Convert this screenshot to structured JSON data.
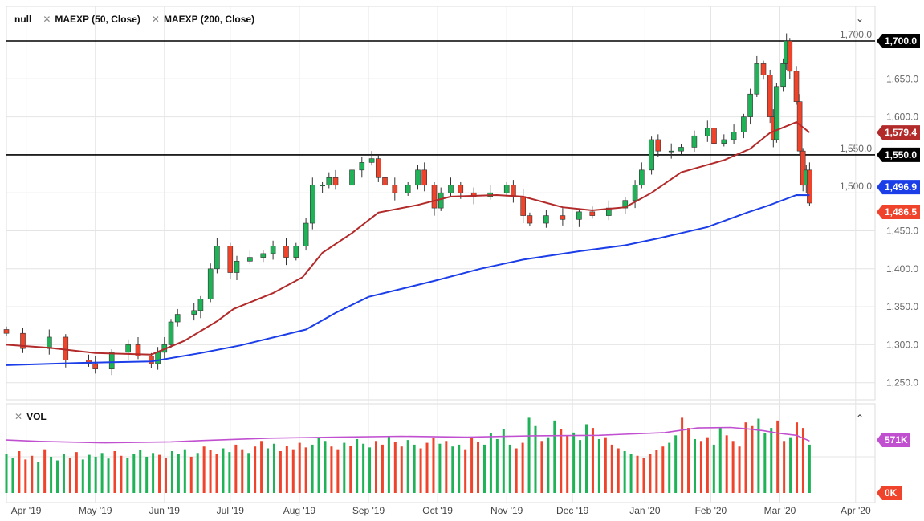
{
  "header": {
    "symbol": "null",
    "indicators": [
      "MAEXP (50, Close)",
      "MAEXP (200, Close)"
    ],
    "collapse_icon": "chevron-down-icon"
  },
  "volume_pane": {
    "title": "VOL",
    "collapse_icon": "chevron-up-icon",
    "last_label": "571K",
    "zero_label": "0K"
  },
  "colors": {
    "up": "#1fb257",
    "down": "#f0432b",
    "ma50": "#b22a2a",
    "ma200": "#1b3ee8",
    "volma": "#c050d0",
    "hline": "#000000"
  },
  "chart_data": {
    "type": "candlestick",
    "ylim": [
      1230,
      1710
    ],
    "yticks": [
      "1,250.0",
      "1,300.0",
      "1,350.0",
      "1,400.0",
      "1,450.0",
      "1,500.0",
      "1,550.0",
      "1,600.0",
      "1,650.0",
      "1,700.0"
    ],
    "ytick_values": [
      1250,
      1300,
      1350,
      1400,
      1450,
      1500,
      1550,
      1600,
      1650,
      1700
    ],
    "xticks": [
      {
        "d": 6,
        "label": "Apr '19"
      },
      {
        "d": 27,
        "label": "May '19"
      },
      {
        "d": 48,
        "label": "Jun '19"
      },
      {
        "d": 68,
        "label": "Jul '19"
      },
      {
        "d": 89,
        "label": "Aug '19"
      },
      {
        "d": 110,
        "label": "Sep '19"
      },
      {
        "d": 131,
        "label": "Oct '19"
      },
      {
        "d": 152,
        "label": "Nov '19"
      },
      {
        "d": 172,
        "label": "Dec '19"
      },
      {
        "d": 194,
        "label": "Jan '20"
      },
      {
        "d": 214,
        "label": "Feb '20"
      },
      {
        "d": 235,
        "label": "Mar '20"
      },
      {
        "d": 258,
        "label": "Apr '20"
      }
    ],
    "xlim": [
      -2,
      265
    ],
    "horizontal_lines": [
      {
        "value": 1700,
        "label": "1,700.0"
      },
      {
        "value": 1550,
        "label": "1,550.0"
      }
    ],
    "last_labels": {
      "ma50": "1,579.4",
      "ma200": "1,496.9",
      "price": "1,486.5"
    },
    "closes": [
      [
        0,
        1315
      ],
      [
        5,
        1295
      ],
      [
        13,
        1310
      ],
      [
        18,
        1280
      ],
      [
        25,
        1275
      ],
      [
        27,
        1268
      ],
      [
        32,
        1290
      ],
      [
        37,
        1300
      ],
      [
        40,
        1285
      ],
      [
        44,
        1275
      ],
      [
        46,
        1290
      ],
      [
        48,
        1300
      ],
      [
        50,
        1330
      ],
      [
        52,
        1340
      ],
      [
        57,
        1345
      ],
      [
        59,
        1360
      ],
      [
        62,
        1400
      ],
      [
        64,
        1430
      ],
      [
        68,
        1395
      ],
      [
        70,
        1410
      ],
      [
        74,
        1415
      ],
      [
        78,
        1420
      ],
      [
        81,
        1430
      ],
      [
        85,
        1415
      ],
      [
        88,
        1430
      ],
      [
        91,
        1460
      ],
      [
        93,
        1510
      ],
      [
        96,
        1510
      ],
      [
        98,
        1520
      ],
      [
        100,
        1510
      ],
      [
        105,
        1530
      ],
      [
        108,
        1540
      ],
      [
        111,
        1545
      ],
      [
        113,
        1520
      ],
      [
        115,
        1510
      ],
      [
        118,
        1500
      ],
      [
        122,
        1510
      ],
      [
        125,
        1530
      ],
      [
        127,
        1510
      ],
      [
        130,
        1480
      ],
      [
        132,
        1500
      ],
      [
        135,
        1510
      ],
      [
        138,
        1500
      ],
      [
        142,
        1495
      ],
      [
        147,
        1500
      ],
      [
        152,
        1510
      ],
      [
        154,
        1495
      ],
      [
        157,
        1470
      ],
      [
        159,
        1460
      ],
      [
        164,
        1470
      ],
      [
        169,
        1465
      ],
      [
        174,
        1475
      ],
      [
        178,
        1470
      ],
      [
        183,
        1480
      ],
      [
        188,
        1490
      ],
      [
        191,
        1510
      ],
      [
        193,
        1530
      ],
      [
        196,
        1570
      ],
      [
        198,
        1555
      ],
      [
        202,
        1555
      ],
      [
        205,
        1560
      ],
      [
        209,
        1575
      ],
      [
        213,
        1585
      ],
      [
        215,
        1565
      ],
      [
        218,
        1570
      ],
      [
        221,
        1580
      ],
      [
        224,
        1600
      ],
      [
        226,
        1630
      ],
      [
        228,
        1670
      ],
      [
        230,
        1655
      ],
      [
        232,
        1600
      ],
      [
        233,
        1570
      ],
      [
        234,
        1640
      ],
      [
        236,
        1670
      ],
      [
        237,
        1700
      ],
      [
        238,
        1660
      ],
      [
        240,
        1620
      ],
      [
        241,
        1555
      ],
      [
        242,
        1510
      ],
      [
        243,
        1530
      ],
      [
        244,
        1486.5
      ]
    ],
    "ma50": [
      [
        0,
        1300
      ],
      [
        13,
        1296
      ],
      [
        27,
        1289
      ],
      [
        44,
        1287
      ],
      [
        54,
        1305
      ],
      [
        64,
        1331
      ],
      [
        69,
        1347
      ],
      [
        81,
        1368
      ],
      [
        90,
        1389
      ],
      [
        96,
        1421
      ],
      [
        105,
        1447
      ],
      [
        113,
        1474
      ],
      [
        125,
        1484
      ],
      [
        135,
        1495
      ],
      [
        149,
        1497
      ],
      [
        157,
        1495
      ],
      [
        169,
        1481
      ],
      [
        178,
        1477
      ],
      [
        188,
        1481
      ],
      [
        196,
        1500
      ],
      [
        205,
        1527
      ],
      [
        218,
        1543
      ],
      [
        226,
        1558
      ],
      [
        232,
        1579
      ],
      [
        240,
        1593
      ],
      [
        244,
        1579.4
      ]
    ],
    "ma200": [
      [
        0,
        1273
      ],
      [
        22,
        1276
      ],
      [
        44,
        1278
      ],
      [
        59,
        1289
      ],
      [
        71,
        1299
      ],
      [
        91,
        1320
      ],
      [
        100,
        1342
      ],
      [
        110,
        1363
      ],
      [
        130,
        1384
      ],
      [
        144,
        1400
      ],
      [
        157,
        1412
      ],
      [
        174,
        1423
      ],
      [
        188,
        1431
      ],
      [
        198,
        1440
      ],
      [
        213,
        1455
      ],
      [
        225,
        1474
      ],
      [
        232,
        1484
      ],
      [
        240,
        1497
      ],
      [
        244,
        1496.9
      ]
    ],
    "volume_k": [
      420,
      380,
      450,
      360,
      400,
      330,
      470,
      390,
      350,
      420,
      380,
      440,
      360,
      410,
      390,
      430,
      370,
      450,
      400,
      380,
      420,
      460,
      390,
      430,
      410,
      380,
      450,
      420,
      470,
      390,
      430,
      500,
      460,
      420,
      480,
      440,
      520,
      470,
      430,
      500,
      560,
      480,
      530,
      450,
      510,
      470,
      540,
      490,
      520,
      600,
      560,
      500,
      470,
      540,
      510,
      580,
      530,
      490,
      560,
      520,
      610,
      550,
      500,
      570,
      520,
      480,
      540,
      590,
      530,
      560,
      500,
      520,
      470,
      600,
      550,
      520,
      640,
      580,
      690,
      520,
      480,
      540,
      810,
      720,
      560,
      600,
      780,
      690,
      620,
      650,
      570,
      740,
      700,
      580,
      600,
      520,
      480,
      450,
      420,
      400,
      380,
      420,
      460,
      500,
      540,
      620,
      810,
      700,
      580,
      560,
      600,
      520,
      700,
      620,
      560,
      500,
      760,
      720,
      800,
      640,
      700,
      780,
      560,
      600,
      760,
      700,
      520
    ],
    "volume_ma_k": [
      [
        0,
        570
      ],
      [
        10,
        555
      ],
      [
        30,
        540
      ],
      [
        50,
        550
      ],
      [
        60,
        565
      ],
      [
        80,
        590
      ],
      [
        100,
        600
      ],
      [
        120,
        610
      ],
      [
        140,
        600
      ],
      [
        160,
        615
      ],
      [
        180,
        620
      ],
      [
        200,
        650
      ],
      [
        210,
        700
      ],
      [
        220,
        705
      ],
      [
        225,
        690
      ],
      [
        230,
        670
      ],
      [
        235,
        640
      ],
      [
        240,
        620
      ],
      [
        244,
        560
      ]
    ]
  }
}
